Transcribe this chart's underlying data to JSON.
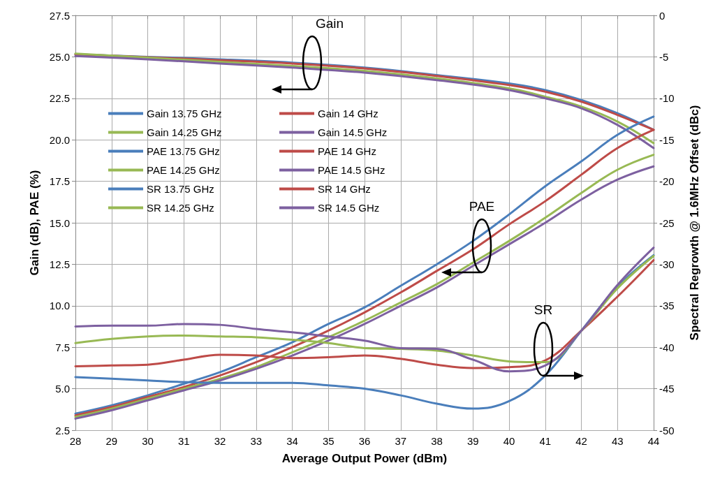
{
  "chart_data": {
    "type": "line",
    "xlabel": "Average Output Power (dBm)",
    "ylabel": "Gain (dB), PAE (%)",
    "y2label": "Spectral Regrowth @ 1.6MHz Offset (dBc)",
    "x": [
      28,
      29,
      30,
      31,
      32,
      33,
      34,
      35,
      36,
      37,
      38,
      39,
      40,
      41,
      42,
      43,
      44
    ],
    "xlim": [
      28,
      44
    ],
    "xticks": [
      28,
      29,
      30,
      31,
      32,
      33,
      34,
      35,
      36,
      37,
      38,
      39,
      40,
      41,
      42,
      43,
      44
    ],
    "ylim": [
      2.5,
      27.5
    ],
    "yticks": [
      2.5,
      {
        "value": 5,
        "label": "5.0"
      },
      7.5,
      {
        "value": 10,
        "label": "10.0"
      },
      12.5,
      {
        "value": 15,
        "label": "15.0"
      },
      17.5,
      {
        "value": 20,
        "label": "20.0"
      },
      22.5,
      {
        "value": 25,
        "label": "25.0"
      },
      27.5
    ],
    "y2lim": [
      -50,
      0
    ],
    "y2ticks": [
      -50,
      -45,
      -40,
      -35,
      -30,
      -25,
      -20,
      -15,
      -10,
      -5,
      0
    ],
    "grid": true,
    "legend": "top left",
    "marker": "none",
    "line_style": "solid",
    "series": [
      {
        "name": "Gain 13.75 GHz",
        "color": "#4a7ebb",
        "x": [
          28,
          30,
          32,
          34,
          36,
          38,
          40,
          41,
          42,
          43,
          44
        ],
        "values": [
          25.15,
          25.0,
          24.85,
          24.65,
          24.35,
          23.9,
          23.4,
          23.0,
          22.4,
          21.6,
          20.6
        ]
      },
      {
        "name": "Gain 14 GHz",
        "color": "#be4b48",
        "x": [
          28,
          30,
          32,
          34,
          36,
          38,
          40,
          41,
          42,
          43,
          44
        ],
        "values": [
          25.15,
          24.98,
          24.8,
          24.6,
          24.3,
          23.85,
          23.3,
          22.9,
          22.3,
          21.5,
          20.6
        ]
      },
      {
        "name": "Gain 14.25 GHz",
        "color": "#98b954",
        "x": [
          28,
          30,
          32,
          34,
          36,
          38,
          40,
          41,
          42,
          43,
          44
        ],
        "values": [
          25.2,
          24.95,
          24.7,
          24.45,
          24.15,
          23.7,
          23.1,
          22.6,
          22.0,
          21.1,
          19.8
        ]
      },
      {
        "name": "Gain 14.5 GHz",
        "color": "#7d60a0",
        "x": [
          28,
          30,
          32,
          34,
          36,
          38,
          40,
          41,
          42,
          43,
          44
        ],
        "values": [
          25.05,
          24.85,
          24.6,
          24.35,
          24.05,
          23.6,
          23.0,
          22.5,
          21.9,
          20.9,
          19.5
        ]
      },
      {
        "name": "PAE 13.75 GHz",
        "color": "#4a7ebb",
        "values": [
          3.5,
          4.0,
          4.6,
          5.3,
          6.0,
          6.9,
          7.8,
          8.9,
          9.9,
          11.2,
          12.5,
          13.9,
          15.5,
          17.2,
          18.7,
          20.3,
          21.4
        ]
      },
      {
        "name": "PAE 14 GHz",
        "color": "#be4b48",
        "values": [
          3.4,
          3.9,
          4.5,
          5.1,
          5.8,
          6.6,
          7.5,
          8.5,
          9.6,
          10.8,
          12.1,
          13.4,
          14.9,
          16.3,
          17.9,
          19.5,
          20.6
        ]
      },
      {
        "name": "PAE 14.25 GHz",
        "color": "#98b954",
        "values": [
          3.3,
          3.8,
          4.4,
          5.0,
          5.6,
          6.3,
          7.2,
          8.1,
          9.1,
          10.2,
          11.3,
          12.6,
          13.9,
          15.3,
          16.8,
          18.2,
          19.1
        ]
      },
      {
        "name": "PAE 14.5 GHz",
        "color": "#7d60a0",
        "values": [
          3.2,
          3.7,
          4.3,
          4.9,
          5.5,
          6.2,
          7.0,
          7.9,
          8.9,
          10.0,
          11.1,
          12.4,
          13.7,
          15.0,
          16.4,
          17.6,
          18.4
        ]
      },
      {
        "name": "SR 13.75 GHz",
        "color": "#4a7ebb",
        "axis": "y2",
        "values": [
          -43.6,
          -43.8,
          -44.0,
          -44.2,
          -44.3,
          -44.3,
          -44.3,
          -44.6,
          -45.0,
          -45.8,
          -46.8,
          -47.4,
          -46.5,
          -43.4,
          -38.0,
          -32.7,
          -28.9
        ]
      },
      {
        "name": "SR 14 GHz",
        "color": "#be4b48",
        "axis": "y2",
        "values": [
          -42.3,
          -42.2,
          -42.1,
          -41.5,
          -40.9,
          -41.0,
          -41.3,
          -41.2,
          -41.0,
          -41.4,
          -42.1,
          -42.5,
          -42.4,
          -41.6,
          -38.0,
          -33.9,
          -29.5
        ]
      },
      {
        "name": "SR 14.25 GHz",
        "color": "#98b954",
        "axis": "y2",
        "values": [
          -39.5,
          -39.0,
          -38.7,
          -38.6,
          -38.7,
          -38.8,
          -39.1,
          -39.5,
          -40.1,
          -40.2,
          -40.4,
          -41.0,
          -41.7,
          -41.8,
          -38.0,
          -32.9,
          -29.0
        ]
      },
      {
        "name": "SR 14.5 GHz",
        "color": "#7d60a0",
        "axis": "y2",
        "values": [
          -37.5,
          -37.4,
          -37.4,
          -37.2,
          -37.3,
          -37.8,
          -38.2,
          -38.7,
          -39.2,
          -40.1,
          -40.2,
          -41.5,
          -42.9,
          -42.2,
          -38.0,
          -32.5,
          -28.0
        ]
      }
    ],
    "annotations": [
      "Gain",
      "PAE",
      "SR"
    ]
  }
}
